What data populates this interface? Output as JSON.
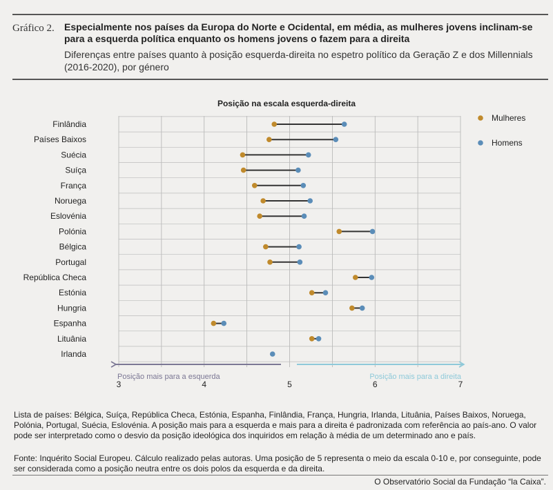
{
  "header": {
    "label": "Gráfico 2.",
    "title": "Especialmente nos países da Europa do Norte e Ocidental, em média, as mulheres jovens inclinam-se para a esquerda política enquanto os homens jovens o fazem para a direita",
    "subtitle": "Diferenças entre países quanto à posição esquerda-direita no espetro político da Geração Z e dos Millennials (2016-2020), por género"
  },
  "chart_data": {
    "type": "dumbbell",
    "title": "Posição na escala esquerda-direita",
    "xlim": [
      3,
      7
    ],
    "xticks": [
      "3",
      "4",
      "5",
      "6",
      "7"
    ],
    "grid": true,
    "legend_position": "top-right",
    "series": [
      {
        "name": "Mulheres",
        "color": "#c08a2c"
      },
      {
        "name": "Homens",
        "color": "#5b8db8"
      }
    ],
    "categories": [
      "Finlândia",
      "Países Baixos",
      "Suécia",
      "Suíça",
      "França",
      "Noruega",
      "Eslovénia",
      "Polónia",
      "Bélgica",
      "Portugal",
      "República Checa",
      "Estónia",
      "Hungria",
      "Espanha",
      "Lituânia",
      "Irlanda"
    ],
    "women": [
      4.82,
      4.76,
      4.45,
      4.46,
      4.59,
      4.69,
      4.65,
      5.58,
      4.72,
      4.77,
      5.77,
      5.26,
      5.73,
      4.11,
      5.26,
      null
    ],
    "men": [
      5.64,
      5.54,
      5.22,
      5.1,
      5.16,
      5.24,
      5.17,
      5.97,
      5.11,
      5.12,
      5.96,
      5.42,
      5.85,
      4.23,
      5.34,
      4.8
    ],
    "annotations": {
      "left": "Posição mais para a esquerda",
      "right": "Posição mais para a direita",
      "left_color": "#7b7794",
      "right_color": "#8ec9d9"
    }
  },
  "notes": {
    "countries": "Lista de países: Bélgica, Suíça, República Checa, Estónia, Espanha, Finlândia, França, Hungria, Irlanda, Lituânia, Países Baixos, Noruega, Polónia, Portugal, Suécia, Eslovénia. A posição mais para a esquerda e mais para a direita é padronizada com referência ao país-ano. O valor pode ser interpretado como o desvio da posição ideológica dos inquiridos em relação à média de um determinado ano e país.",
    "source": "Fonte: Inquérito Social Europeu. Cálculo realizado pelas autoras. Uma posição de 5 representa o meio da escala 0-10 e, por conseguinte, pode ser considerada como a posição neutra entre os dois polos da esquerda e da direita."
  },
  "footer": {
    "credit": "O Observatório Social da Fundação “la Caixa”."
  }
}
